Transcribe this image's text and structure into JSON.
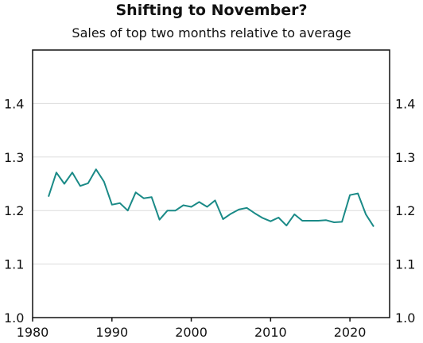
{
  "title": "Shifting to November?",
  "subtitle": "Sales of top two months relative to average",
  "chart_data": {
    "type": "line",
    "title": "Shifting to November?",
    "subtitle": "Sales of top two months relative to average",
    "xlabel": "",
    "ylabel": "",
    "xlim": [
      1980,
      2025
    ],
    "ylim": [
      1.0,
      1.5
    ],
    "x_ticks": [
      1980,
      1990,
      2000,
      2010,
      2020
    ],
    "x_tick_labels": [
      "1980",
      "1990",
      "2000",
      "2010",
      "2020"
    ],
    "y_ticks": [
      1.0,
      1.1,
      1.2,
      1.3,
      1.4
    ],
    "y_tick_labels": [
      "1.0",
      "1.1",
      "1.2",
      "1.3",
      "1.4"
    ],
    "y_axis_both_sides": true,
    "grid": "horizontal",
    "line_color": "#1a8a87",
    "grid_color": "#dcdcdc",
    "x": [
      1982,
      1983,
      1984,
      1985,
      1986,
      1987,
      1988,
      1989,
      1990,
      1991,
      1992,
      1993,
      1994,
      1995,
      1996,
      1997,
      1998,
      1999,
      2000,
      2001,
      2002,
      2003,
      2004,
      2005,
      2006,
      2007,
      2008,
      2009,
      2010,
      2011,
      2012,
      2013,
      2014,
      2015,
      2016,
      2017,
      2018,
      2019,
      2020,
      2021,
      2022,
      2023
    ],
    "y": [
      1.226,
      1.271,
      1.25,
      1.271,
      1.246,
      1.251,
      1.277,
      1.254,
      1.211,
      1.214,
      1.2,
      1.234,
      1.223,
      1.225,
      1.183,
      1.2,
      1.2,
      1.21,
      1.207,
      1.216,
      1.207,
      1.219,
      1.184,
      1.194,
      1.202,
      1.205,
      1.195,
      1.186,
      1.18,
      1.187,
      1.172,
      1.193,
      1.181,
      1.181,
      1.181,
      1.182,
      1.178,
      1.179,
      1.229,
      1.232,
      1.193,
      1.17
    ]
  }
}
